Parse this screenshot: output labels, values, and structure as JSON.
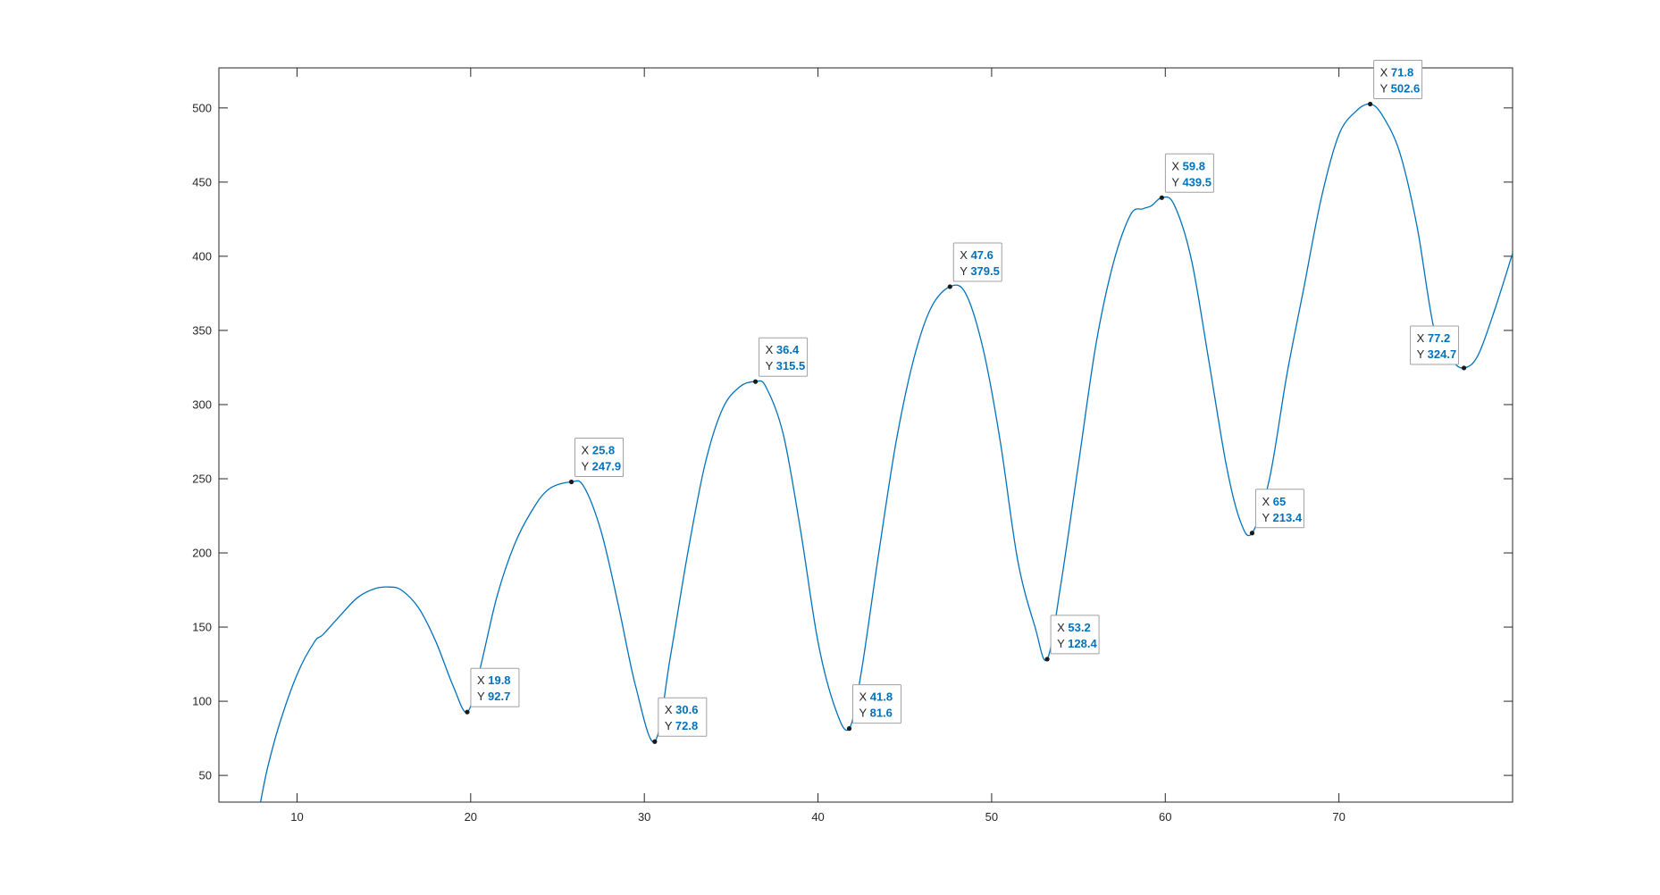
{
  "chart_data": {
    "type": "line",
    "title": "",
    "xlabel": "",
    "ylabel": "",
    "xlim": [
      5.5,
      80
    ],
    "ylim": [
      32,
      527
    ],
    "grid": false,
    "line_color": "#0072BD",
    "x_ticks": [
      10,
      20,
      30,
      40,
      50,
      60,
      70
    ],
    "y_ticks": [
      50,
      100,
      150,
      200,
      250,
      300,
      350,
      400,
      450,
      500
    ],
    "series": [
      {
        "x": [
          7.9,
          8.3,
          9.0,
          10.0,
          11.0,
          11.5,
          12.5,
          13.5,
          14.5,
          15.3,
          16.0,
          17.0,
          18.0,
          19.0,
          19.8,
          20.5,
          21.5,
          22.5,
          23.5,
          24.5,
          25.8,
          26.5,
          27.5,
          28.5,
          29.5,
          30.6,
          31.5,
          32.5,
          33.5,
          34.5,
          35.5,
          36.4,
          37.0,
          38.0,
          39.0,
          40.0,
          41.0,
          41.8,
          42.5,
          43.5,
          44.5,
          45.5,
          46.5,
          47.6,
          48.5,
          49.5,
          50.5,
          51.5,
          52.5,
          53.2,
          54.0,
          55.0,
          56.0,
          57.0,
          58.0,
          58.7,
          59.2,
          59.8,
          60.5,
          61.5,
          62.5,
          63.5,
          64.3,
          65.0,
          66.0,
          67.0,
          68.0,
          69.0,
          70.0,
          71.0,
          71.8,
          72.5,
          73.5,
          74.5,
          75.5,
          76.5,
          77.2,
          78.0,
          79.0,
          80.0
        ],
        "y": [
          32,
          55,
          85,
          118,
          140,
          145,
          158,
          170,
          176,
          177,
          175,
          163,
          140,
          110,
          92.7,
          120,
          170,
          205,
          228,
          243,
          247.9,
          245,
          215,
          165,
          110,
          72.8,
          130,
          200,
          260,
          297,
          312,
          315.5,
          312,
          280,
          215,
          140,
          95,
          81.6,
          120,
          200,
          275,
          330,
          365,
          379.5,
          375,
          338,
          275,
          195,
          150,
          128.4,
          180,
          260,
          340,
          395,
          428,
          432,
          434,
          439.5,
          435,
          398,
          330,
          260,
          222,
          213.4,
          250,
          320,
          380,
          440,
          482,
          498,
          502.6,
          495,
          470,
          420,
          350,
          330,
          324.7,
          333,
          365,
          402
        ]
      }
    ],
    "annotations": [
      {
        "x": 19.8,
        "y": 92.7,
        "x_label": "X",
        "y_label": "Y",
        "x_text": "19.8",
        "y_text": "92.7"
      },
      {
        "x": 25.8,
        "y": 247.9,
        "x_label": "X",
        "y_label": "Y",
        "x_text": "25.8",
        "y_text": "247.9"
      },
      {
        "x": 30.6,
        "y": 72.8,
        "x_label": "X",
        "y_label": "Y",
        "x_text": "30.6",
        "y_text": "72.8"
      },
      {
        "x": 36.4,
        "y": 315.5,
        "x_label": "X",
        "y_label": "Y",
        "x_text": "36.4",
        "y_text": "315.5"
      },
      {
        "x": 41.8,
        "y": 81.6,
        "x_label": "X",
        "y_label": "Y",
        "x_text": "41.8",
        "y_text": "81.6"
      },
      {
        "x": 47.6,
        "y": 379.5,
        "x_label": "X",
        "y_label": "Y",
        "x_text": "47.6",
        "y_text": "379.5"
      },
      {
        "x": 53.2,
        "y": 128.4,
        "x_label": "X",
        "y_label": "Y",
        "x_text": "53.2",
        "y_text": "128.4"
      },
      {
        "x": 59.8,
        "y": 439.5,
        "x_label": "X",
        "y_label": "Y",
        "x_text": "59.8",
        "y_text": "439.5"
      },
      {
        "x": 65,
        "y": 213.4,
        "x_label": "X",
        "y_label": "Y",
        "x_text": "65",
        "y_text": "213.4"
      },
      {
        "x": 71.8,
        "y": 502.6,
        "x_label": "X",
        "y_label": "Y",
        "x_text": "71.8",
        "y_text": "502.6"
      },
      {
        "x": 77.2,
        "y": 324.7,
        "x_label": "X",
        "y_label": "Y",
        "x_text": "77.2",
        "y_text": "324.7",
        "placement": "left"
      }
    ]
  }
}
